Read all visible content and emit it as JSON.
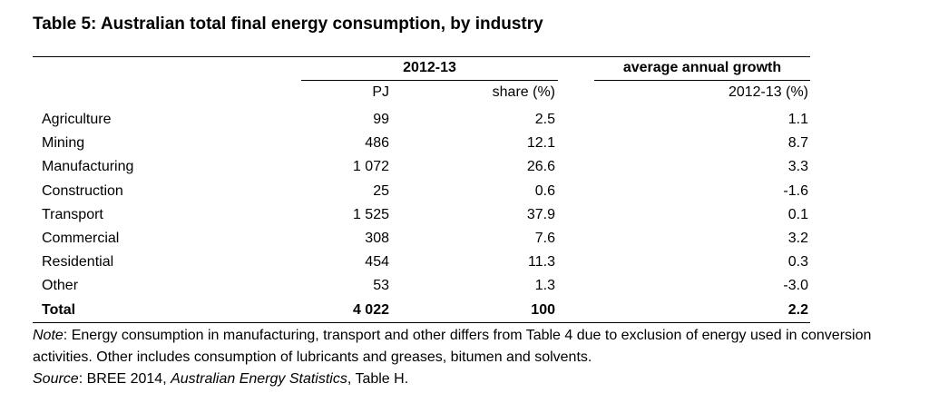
{
  "title": "Table 5: Australian total final energy consumption, by industry",
  "headers": {
    "group1": "2012-13",
    "group2": "average annual growth",
    "pj": "PJ",
    "share": "share (%)",
    "growth": "2012-13 (%)"
  },
  "rows": [
    {
      "name": "Agriculture",
      "pj": "99",
      "share": "2.5",
      "growth": "1.1"
    },
    {
      "name": "Mining",
      "pj": "486",
      "share": "12.1",
      "growth": "8.7"
    },
    {
      "name": "Manufacturing",
      "pj": "1 072",
      "share": "26.6",
      "growth": "3.3"
    },
    {
      "name": "Construction",
      "pj": "25",
      "share": "0.6",
      "growth": "-1.6"
    },
    {
      "name": "Transport",
      "pj": "1 525",
      "share": "37.9",
      "growth": "0.1"
    },
    {
      "name": "Commercial",
      "pj": "308",
      "share": "7.6",
      "growth": "3.2"
    },
    {
      "name": "Residential",
      "pj": "454",
      "share": "11.3",
      "growth": "0.3"
    },
    {
      "name": "Other",
      "pj": "53",
      "share": "1.3",
      "growth": "-3.0"
    },
    {
      "name": "Total",
      "pj": "4 022",
      "share": "100",
      "growth": "2.2"
    }
  ],
  "note": {
    "label": "Note",
    "text": ": Energy consumption in manufacturing, transport and other differs from Table 4 due to exclusion of energy used in conversion activities. Other includes consumption of lubricants and greases, bitumen and solvents."
  },
  "source": {
    "label": "Source",
    "text1": ": BREE 2014, ",
    "publication": "Australian Energy Statistics",
    "text2": ", Table H."
  }
}
